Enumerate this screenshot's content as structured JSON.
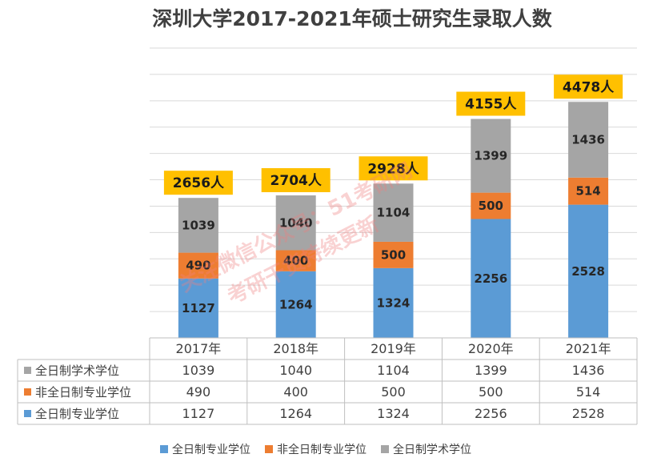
{
  "chart_data": {
    "type": "bar",
    "stacked": true,
    "title": "深圳大学2017-2021年硕士研究生录取人数",
    "categories": [
      "2017年",
      "2018年",
      "2019年",
      "2020年",
      "2021年"
    ],
    "series": [
      {
        "name": "全日制专业学位",
        "color": "#5b9bd5",
        "values": [
          1127,
          1264,
          1324,
          2256,
          2528
        ]
      },
      {
        "name": "非全日制专业学位",
        "color": "#ed7d31",
        "values": [
          490,
          400,
          500,
          500,
          514
        ]
      },
      {
        "name": "全日制学术学位",
        "color": "#a5a5a5",
        "values": [
          1039,
          1040,
          1104,
          1399,
          1436
        ]
      }
    ],
    "totals": [
      "2656人",
      "2704人",
      "2928人",
      "4155人",
      "4478人"
    ],
    "ylim": [
      0,
      5500
    ],
    "gridlines": true,
    "data_table": true,
    "legend_position": "bottom"
  },
  "watermark": {
    "line1": "关注微信公众号：51考研网",
    "line2": "考研干货持续更新"
  },
  "colors": {
    "total_box_fill": "#ffc000",
    "grid": "#d9d9d9"
  }
}
